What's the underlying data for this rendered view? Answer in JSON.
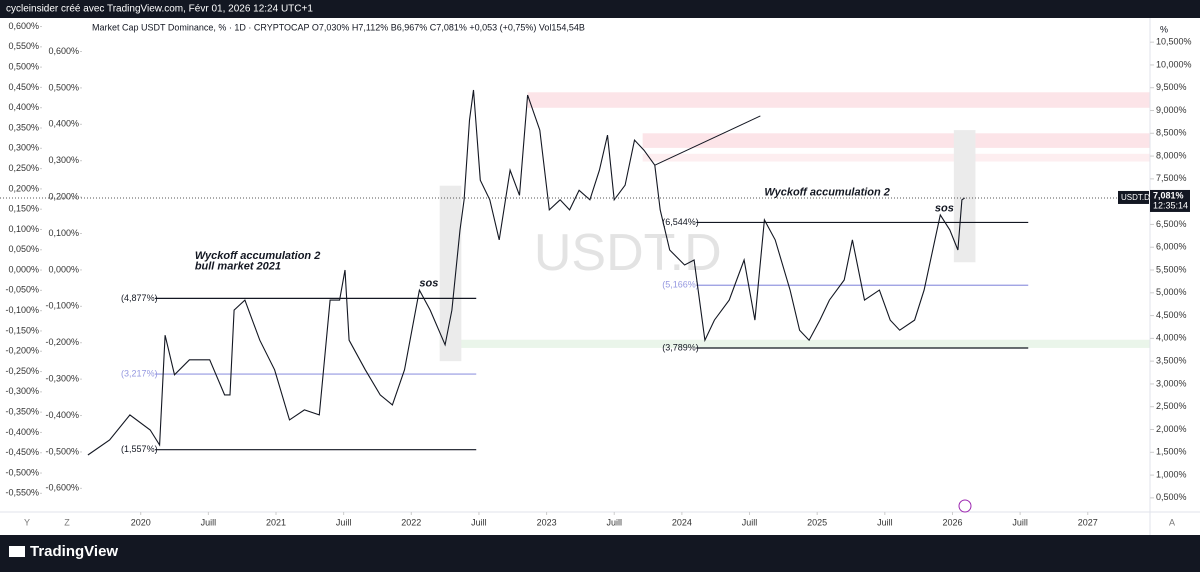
{
  "header": {
    "credit": "cycleinsider créé avec TradingView.com, Févr 01, 2026 12:24 UTC+1",
    "legend": "Market Cap USDT Dominance, % · 1D · CRYPTOCAP  O7,030%  H7,112%  B6,967%  C7,081%  +0,053 (+0,75%)  Vol154,54B"
  },
  "footer": {
    "brand": "TradingView",
    "buttons": [
      "Y",
      "Z",
      "A"
    ]
  },
  "chart_data": {
    "type": "line",
    "watermark": "USDT.D",
    "unit": "%",
    "x": [
      2019.61,
      2019.77,
      2019.92,
      2020.07,
      2020.14,
      2020.18,
      2020.25,
      2020.36,
      2020.51,
      2020.62,
      2020.66,
      2020.69,
      2020.77,
      2020.88,
      2020.99,
      2021.1,
      2021.21,
      2021.32,
      2021.4,
      2021.47,
      2021.51,
      2021.54,
      2021.66,
      2021.77,
      2021.86,
      2021.95,
      2022.06,
      2022.14,
      2022.25,
      2022.3,
      2022.36,
      2022.39,
      2022.43,
      2022.46,
      2022.51,
      2022.58,
      2022.65,
      2022.73,
      2022.8,
      2022.86,
      2022.95,
      2023.02,
      2023.1,
      2023.17,
      2023.24,
      2023.32,
      2023.39,
      2023.45,
      2023.5,
      2023.58,
      2023.65,
      2023.72,
      2023.8,
      2023.84,
      2023.91,
      2024.02,
      2024.09,
      2024.17,
      2024.24,
      2024.35,
      2024.46,
      2024.54,
      2024.61,
      2024.69,
      2024.8,
      2024.87,
      2024.94,
      2025.02,
      2025.09,
      2025.2,
      2025.26,
      2025.35,
      2025.46,
      2025.54,
      2025.61,
      2025.72,
      2025.79,
      2025.87,
      2025.91,
      2025.98,
      2026.04,
      2026.07,
      2026.09
    ],
    "series": [
      {
        "name": "USDT.D",
        "color": "#131722",
        "values": [
          1.44,
          1.77,
          2.32,
          1.99,
          1.66,
          4.07,
          3.2,
          3.53,
          3.53,
          2.76,
          2.76,
          4.62,
          4.84,
          3.96,
          3.31,
          2.21,
          2.43,
          2.32,
          4.84,
          4.84,
          5.5,
          3.96,
          3.31,
          2.76,
          2.54,
          3.31,
          5.06,
          4.62,
          3.86,
          4.62,
          6.38,
          7.04,
          8.79,
          9.45,
          7.47,
          7.04,
          6.16,
          7.69,
          7.14,
          9.34,
          8.57,
          6.82,
          7.04,
          6.82,
          7.25,
          7.04,
          7.69,
          8.46,
          7.04,
          7.36,
          8.35,
          8.13,
          7.8,
          6.82,
          5.94,
          5.61,
          5.72,
          3.96,
          4.4,
          4.84,
          5.72,
          4.4,
          6.6,
          6.16,
          5.06,
          4.18,
          3.96,
          4.4,
          4.84,
          5.28,
          6.16,
          4.84,
          5.06,
          4.4,
          4.18,
          4.4,
          5.06,
          6.16,
          6.71,
          6.38,
          5.94,
          7.04,
          7.081
        ]
      }
    ],
    "last_price": {
      "value": 7.081,
      "label": "7,081%"
    },
    "countdown": "12:35:14",
    "xlim": [
      2018.96,
      2027.46
    ],
    "xticks": [
      2020,
      {
        "value": 2020.5,
        "label": "Juill"
      },
      2021,
      {
        "value": 2021.5,
        "label": "Juill"
      },
      2022,
      {
        "value": 2022.5,
        "label": "Juill"
      },
      2023,
      {
        "value": 2023.5,
        "label": "Juill"
      },
      2024,
      {
        "value": 2024.5,
        "label": "Juill"
      },
      2025,
      {
        "value": 2025.5,
        "label": "Juill"
      },
      2026,
      {
        "value": 2026.5,
        "label": "Juill"
      },
      2027
    ],
    "ylim": [
      0.19,
      11.03
    ],
    "yticks": [
      {
        "value": 0.5,
        "label": "0,500%"
      },
      {
        "value": 1,
        "label": "1,000%"
      },
      {
        "value": 1.5,
        "label": "1,500%"
      },
      {
        "value": 2,
        "label": "2,000%"
      },
      {
        "value": 2.5,
        "label": "2,500%"
      },
      {
        "value": 3,
        "label": "3,000%"
      },
      {
        "value": 3.5,
        "label": "3,500%"
      },
      {
        "value": 4,
        "label": "4,000%"
      },
      {
        "value": 4.5,
        "label": "4,500%"
      },
      {
        "value": 5,
        "label": "5,000%"
      },
      {
        "value": 5.5,
        "label": "5,500%"
      },
      {
        "value": 6,
        "label": "6,000%"
      },
      {
        "value": 6.5,
        "label": "6,500%"
      },
      {
        "value": 7,
        "label": "7,000%"
      },
      {
        "value": 7.5,
        "label": "7,500%"
      },
      {
        "value": 8,
        "label": "8,000%"
      },
      {
        "value": 8.5,
        "label": "8,500%"
      },
      {
        "value": 9,
        "label": "9,000%"
      },
      {
        "value": 9.5,
        "label": "9,500%"
      },
      {
        "value": 10,
        "label": "10,000%"
      },
      {
        "value": 10.5,
        "label": "10,500%"
      }
    ],
    "left_scales": [
      {
        "lim": [
          -0.596,
          0.621
        ],
        "ticks": [
          {
            "value": 0.6,
            "label": "0,600%"
          },
          {
            "value": 0.55,
            "label": "0,550%"
          },
          {
            "value": 0.5,
            "label": "0,500%"
          },
          {
            "value": 0.45,
            "label": "0,450%"
          },
          {
            "value": 0.4,
            "label": "0,400%"
          },
          {
            "value": 0.35,
            "label": "0,350%"
          },
          {
            "value": 0.3,
            "label": "0,300%"
          },
          {
            "value": 0.25,
            "label": "0,250%"
          },
          {
            "value": 0.2,
            "label": "0,200%"
          },
          {
            "value": 0.15,
            "label": "0,150%"
          },
          {
            "value": 0.1,
            "label": "0,100%"
          },
          {
            "value": 0.05,
            "label": "0,050%"
          },
          {
            "value": 0,
            "label": "0,000%"
          },
          {
            "value": -0.05,
            "label": "-0,050%"
          },
          {
            "value": -0.1,
            "label": "-0,100%"
          },
          {
            "value": -0.15,
            "label": "-0,150%"
          },
          {
            "value": -0.2,
            "label": "-0,200%"
          },
          {
            "value": -0.25,
            "label": "-0,250%"
          },
          {
            "value": -0.3,
            "label": "-0,300%"
          },
          {
            "value": -0.35,
            "label": "-0,350%"
          },
          {
            "value": -0.4,
            "label": "-0,400%"
          },
          {
            "value": -0.45,
            "label": "-0,450%"
          },
          {
            "value": -0.5,
            "label": "-0,500%"
          },
          {
            "value": -0.55,
            "label": "-0,550%"
          }
        ]
      },
      {
        "lim": [
          -0.665,
          0.692
        ],
        "ticks": [
          {
            "value": 0.6,
            "label": "0,600%"
          },
          {
            "value": 0.5,
            "label": "0,500%"
          },
          {
            "value": 0.4,
            "label": "0,400%"
          },
          {
            "value": 0.3,
            "label": "0,300%"
          },
          {
            "value": 0.2,
            "label": "0,200%"
          },
          {
            "value": 0.1,
            "label": "0,100%"
          },
          {
            "value": 0,
            "label": "0,000%"
          },
          {
            "value": -0.1,
            "label": "-0,100%"
          },
          {
            "value": -0.2,
            "label": "-0,200%"
          },
          {
            "value": -0.3,
            "label": "-0,300%"
          },
          {
            "value": -0.4,
            "label": "-0,400%"
          },
          {
            "value": -0.5,
            "label": "-0,500%"
          },
          {
            "value": -0.6,
            "label": "-0,600%"
          }
        ]
      }
    ],
    "levels": [
      {
        "label": "(4,877%)",
        "value": 4.877,
        "x": [
          2019.84,
          2022.48
        ],
        "color": "#131722"
      },
      {
        "label": "(3,217%)",
        "value": 3.217,
        "x": [
          2019.84,
          2022.48
        ],
        "color": "#9598e0"
      },
      {
        "label": "(1,557%)",
        "value": 1.557,
        "x": [
          2019.84,
          2022.48
        ],
        "color": "#131722"
      },
      {
        "label": "(6,544%)",
        "value": 6.544,
        "x": [
          2023.84,
          2026.56
        ],
        "color": "#131722"
      },
      {
        "label": "(5,166%)",
        "value": 5.166,
        "x": [
          2023.84,
          2026.56
        ],
        "color": "#9598e0"
      },
      {
        "label": "(3,789%)",
        "value": 3.789,
        "x": [
          2023.84,
          2026.56
        ],
        "color": "#131722"
      }
    ],
    "zones": [
      {
        "x": [
          2022.86,
          2027.46
        ],
        "y": [
          9.06,
          9.4
        ],
        "color": "#fce4e8"
      },
      {
        "x": [
          2023.71,
          2027.46
        ],
        "y": [
          8.18,
          8.5
        ],
        "color": "#fce4e8"
      },
      {
        "x": [
          2023.71,
          2027.46
        ],
        "y": [
          7.88,
          8.05
        ],
        "color": "#fdeef0"
      },
      {
        "x": [
          2022.21,
          2027.46
        ],
        "y": [
          3.79,
          3.97
        ],
        "color": "#eaf5ea"
      },
      {
        "x": [
          2022.21,
          2022.37
        ],
        "y": [
          3.5,
          7.35
        ],
        "color": "#ebebeb"
      },
      {
        "x": [
          2026.01,
          2026.17
        ],
        "y": [
          5.67,
          8.57
        ],
        "color": "#ebebeb"
      }
    ],
    "trendline": {
      "x": [
        2023.8,
        2024.58
      ],
      "y": [
        7.8,
        8.88
      ]
    },
    "annotations": [
      {
        "text": "Wyckoff accumulation 2",
        "x": 2020.4,
        "y": 5.8
      },
      {
        "text": "bull market 2021",
        "x": 2020.4,
        "y": 5.57
      },
      {
        "text": "sos",
        "x": 2022.06,
        "y": 5.2
      },
      {
        "text": "Wyckoff accumulation 2",
        "x": 2024.61,
        "y": 7.2
      },
      {
        "text": "sos",
        "x": 2025.87,
        "y": 6.85
      }
    ]
  }
}
